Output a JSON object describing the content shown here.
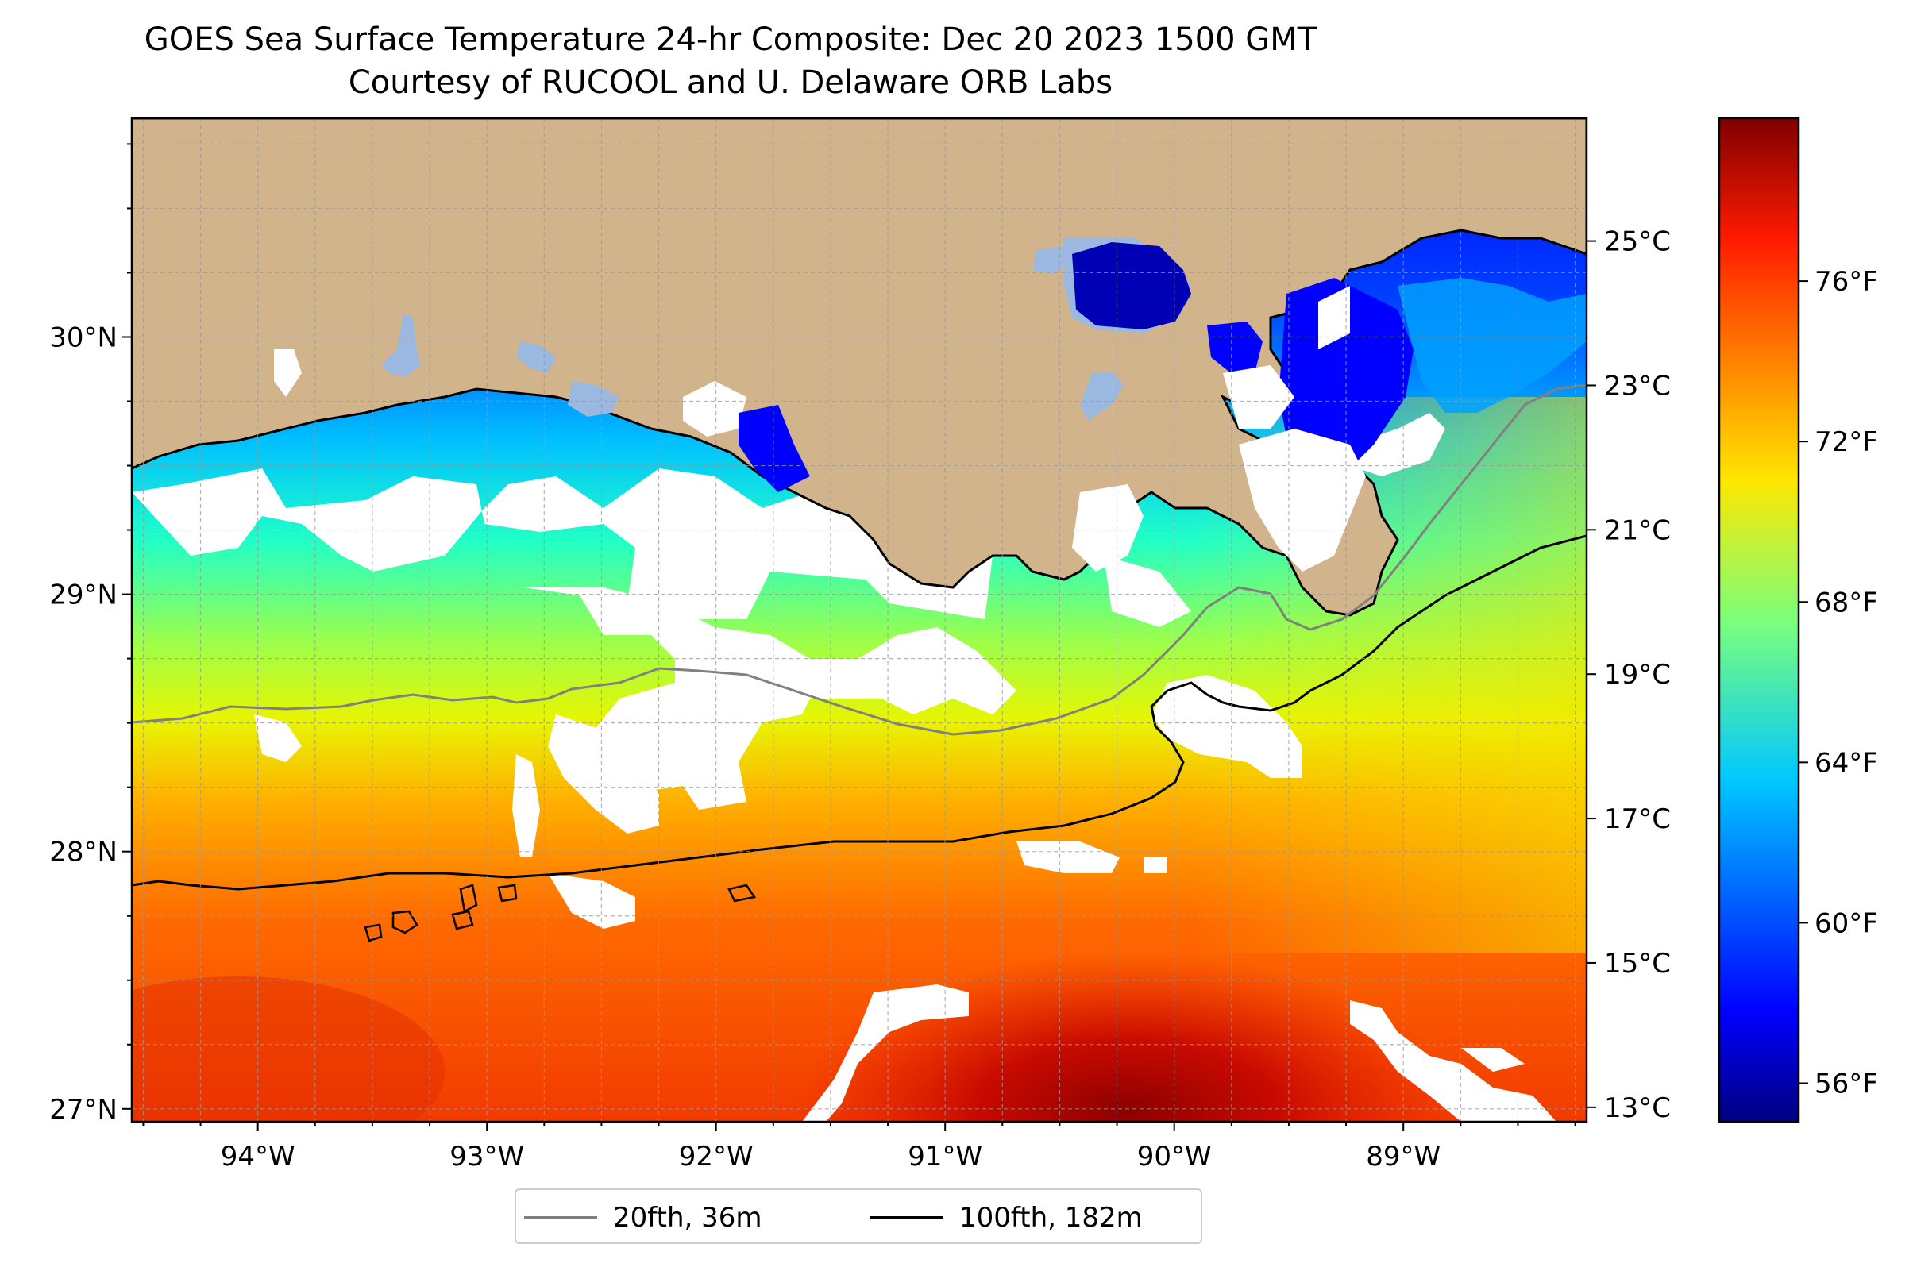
{
  "title": {
    "line1": "GOES Sea Surface Temperature 24-hr Composite: Dec 20 2023 1500 GMT",
    "line2": "Courtesy of RUCOOL and U. Delaware ORB Labs"
  },
  "map": {
    "lon_range": [
      -94.55,
      -88.2
    ],
    "lat_range": [
      26.95,
      30.85
    ],
    "lon_ticks": [
      {
        "value": -94,
        "label": "94°W"
      },
      {
        "value": -93,
        "label": "93°W"
      },
      {
        "value": -92,
        "label": "92°W"
      },
      {
        "value": -91,
        "label": "91°W"
      },
      {
        "value": -90,
        "label": "90°W"
      },
      {
        "value": -89,
        "label": "89°W"
      }
    ],
    "lat_ticks": [
      {
        "value": 27,
        "label": "27°N"
      },
      {
        "value": 28,
        "label": "28°N"
      },
      {
        "value": 29,
        "label": "29°N"
      },
      {
        "value": 30,
        "label": "30°N"
      }
    ],
    "gridlines": true,
    "minor_gridline_step_deg": 0.25,
    "colors": {
      "land": "#D2B48C",
      "lakes": "#9AB8E0",
      "no_data": "#FFFFFF",
      "coastline": "#000000"
    }
  },
  "legend": {
    "placement": "below map",
    "items": [
      {
        "label": "20fth, 36m",
        "color": "#808080"
      },
      {
        "label": "100fth, 182m",
        "color": "#000000"
      }
    ]
  },
  "colorbar": {
    "colormap": "jet",
    "celsius_range": [
      12.8,
      26.7
    ],
    "celsius_ticks": [
      {
        "value": 13,
        "label": "13°C"
      },
      {
        "value": 15,
        "label": "15°C"
      },
      {
        "value": 17,
        "label": "17°C"
      },
      {
        "value": 19,
        "label": "19°C"
      },
      {
        "value": 21,
        "label": "21°C"
      },
      {
        "value": 23,
        "label": "23°C"
      },
      {
        "value": 25,
        "label": "25°C"
      }
    ],
    "fahrenheit_ticks": [
      {
        "value": 56,
        "label": "56°F"
      },
      {
        "value": 60,
        "label": "60°F"
      },
      {
        "value": 64,
        "label": "64°F"
      },
      {
        "value": 68,
        "label": "68°F"
      },
      {
        "value": 72,
        "label": "72°F"
      },
      {
        "value": 76,
        "label": "76°F"
      }
    ]
  }
}
